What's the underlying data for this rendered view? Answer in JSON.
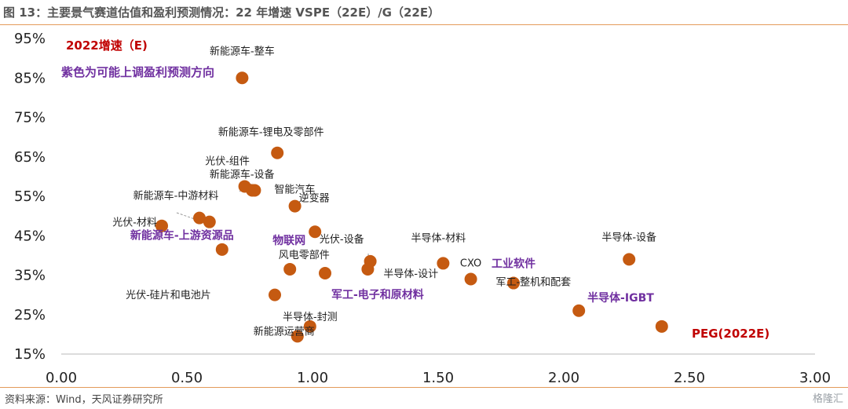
{
  "header": {
    "title": "图 13：主要景气赛道估值和盈利预测情况：22 年增速 VSPE（22E）/G（22E）"
  },
  "footer": {
    "source": "资料来源：Wind，天风证券研究所",
    "watermark": "格隆汇"
  },
  "chart_data": {
    "type": "scatter",
    "title": "",
    "xlabel": "PEG(2022E)",
    "ylabel": "2022增速（E)",
    "xlim": [
      0,
      3
    ],
    "ylim": [
      0.15,
      0.95
    ],
    "x_ticks": [
      "0.00",
      "0.50",
      "1.00",
      "1.50",
      "2.00",
      "2.50",
      "3.00"
    ],
    "y_ticks": [
      "15%",
      "25%",
      "35%",
      "45%",
      "55%",
      "65%",
      "75%",
      "85%",
      "95%"
    ],
    "grid": false,
    "legend": "none",
    "note": "紫色为可能上调盈利预测方向",
    "marker_color": "#c55a11",
    "highlight_color": "#7030a0",
    "points": [
      {
        "label": "新能源车-整车",
        "x": 0.72,
        "y": 0.85,
        "highlight": false
      },
      {
        "label": "新能源车-锂电及零部件",
        "x": 0.86,
        "y": 0.66,
        "highlight": false
      },
      {
        "label": "光伏-组件",
        "x": 0.73,
        "y": 0.575,
        "highlight": false
      },
      {
        "label": "新能源车-设备",
        "x": 0.76,
        "y": 0.565,
        "highlight": false
      },
      {
        "label": "智能汽车",
        "x": 0.77,
        "y": 0.565,
        "highlight": false
      },
      {
        "label": "逆变器",
        "x": 0.93,
        "y": 0.525,
        "highlight": false
      },
      {
        "label": "新能源车-中游材料",
        "x": 0.55,
        "y": 0.495,
        "highlight": false
      },
      {
        "label": "新能源车-上游资源品",
        "x": 0.59,
        "y": 0.485,
        "highlight": true
      },
      {
        "label": "光伏-材料",
        "x": 0.4,
        "y": 0.475,
        "highlight": false
      },
      {
        "label": "物联网",
        "x": 1.01,
        "y": 0.46,
        "highlight": true
      },
      {
        "label": "光伏-硅片和电池片",
        "x": 0.64,
        "y": 0.415,
        "highlight": false
      },
      {
        "label": "光伏-设备",
        "x": 1.23,
        "y": 0.385,
        "highlight": false
      },
      {
        "label": "半导体-设计",
        "x": 1.22,
        "y": 0.365,
        "highlight": false
      },
      {
        "label": "半导体-材料",
        "x": 1.52,
        "y": 0.38,
        "highlight": false
      },
      {
        "label": "风电零部件",
        "x": 0.91,
        "y": 0.365,
        "highlight": false
      },
      {
        "label": "军工-电子和原材料",
        "x": 1.05,
        "y": 0.355,
        "highlight": true
      },
      {
        "label": "CXO",
        "x": 1.63,
        "y": 0.34,
        "highlight": false
      },
      {
        "label": "工业软件",
        "x": 1.8,
        "y": 0.33,
        "highlight": true
      },
      {
        "label": "军工-整机和配套",
        "x": 2.06,
        "y": 0.26,
        "highlight": false
      },
      {
        "label": "半导体-设备",
        "x": 2.26,
        "y": 0.39,
        "highlight": false
      },
      {
        "label": "半导体-IGBT",
        "x": 2.39,
        "y": 0.22,
        "highlight": true
      },
      {
        "label": "",
        "x": 0.85,
        "y": 0.3,
        "highlight": false
      },
      {
        "label": "半导体-封测",
        "x": 0.99,
        "y": 0.22,
        "highlight": false
      },
      {
        "label": "新能源运营商",
        "x": 0.94,
        "y": 0.195,
        "highlight": false
      }
    ]
  }
}
